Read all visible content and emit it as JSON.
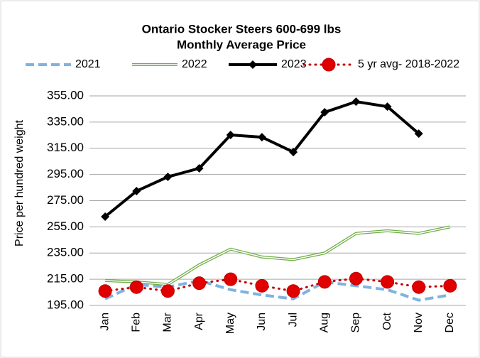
{
  "chart_data": {
    "type": "line",
    "title": "Ontario Stocker Steers 600-699 lbs",
    "subtitle": "Monthly Average Price",
    "y_label": "Price per hundred weight",
    "categories": [
      "Jan",
      "Feb",
      "Mar",
      "Apr",
      "May",
      "Jun",
      "Jul",
      "Aug",
      "Sep",
      "Oct",
      "Nov",
      "Dec"
    ],
    "series": [
      {
        "name": "2021",
        "color": "#7fb2e0",
        "line_style": "dashed",
        "marker": "none",
        "values": [
          200,
          211,
          209,
          214,
          207,
          203,
          200,
          213,
          210,
          207,
          199,
          203
        ]
      },
      {
        "name": "2022",
        "color": "#70ad47",
        "line_style": "double",
        "marker": "none",
        "values": [
          214,
          213,
          211,
          226,
          238,
          232,
          230,
          235,
          250,
          252,
          250,
          255
        ]
      },
      {
        "name": "2023",
        "color": "#000000",
        "line_style": "solid",
        "marker": "diamond",
        "values": [
          262.8,
          282.3,
          293.2,
          299.7,
          325.2,
          323.5,
          312.1,
          342.5,
          350.6,
          346.8,
          326.2,
          null
        ]
      },
      {
        "name": "5 yr avg- 2018-2022",
        "color": "#c00000",
        "line_style": "dotted",
        "marker": "circle",
        "values": [
          206,
          209,
          206,
          212,
          215,
          210,
          206,
          213,
          215.5,
          213,
          209,
          210
        ]
      }
    ],
    "ylim": [
      195,
      355
    ],
    "yticks": [
      {
        "value": 195,
        "label": "195.00"
      },
      {
        "value": 215,
        "label": "215.00"
      },
      {
        "value": 235,
        "label": "235.00"
      },
      {
        "value": 255,
        "label": "255.00"
      },
      {
        "value": 275,
        "label": "275.00"
      },
      {
        "value": 295,
        "label": "295.00"
      },
      {
        "value": 315,
        "label": "315.00"
      },
      {
        "value": 335,
        "label": "335.00"
      },
      {
        "value": 355,
        "label": "355.00"
      }
    ],
    "grid": true,
    "legend": "top"
  }
}
